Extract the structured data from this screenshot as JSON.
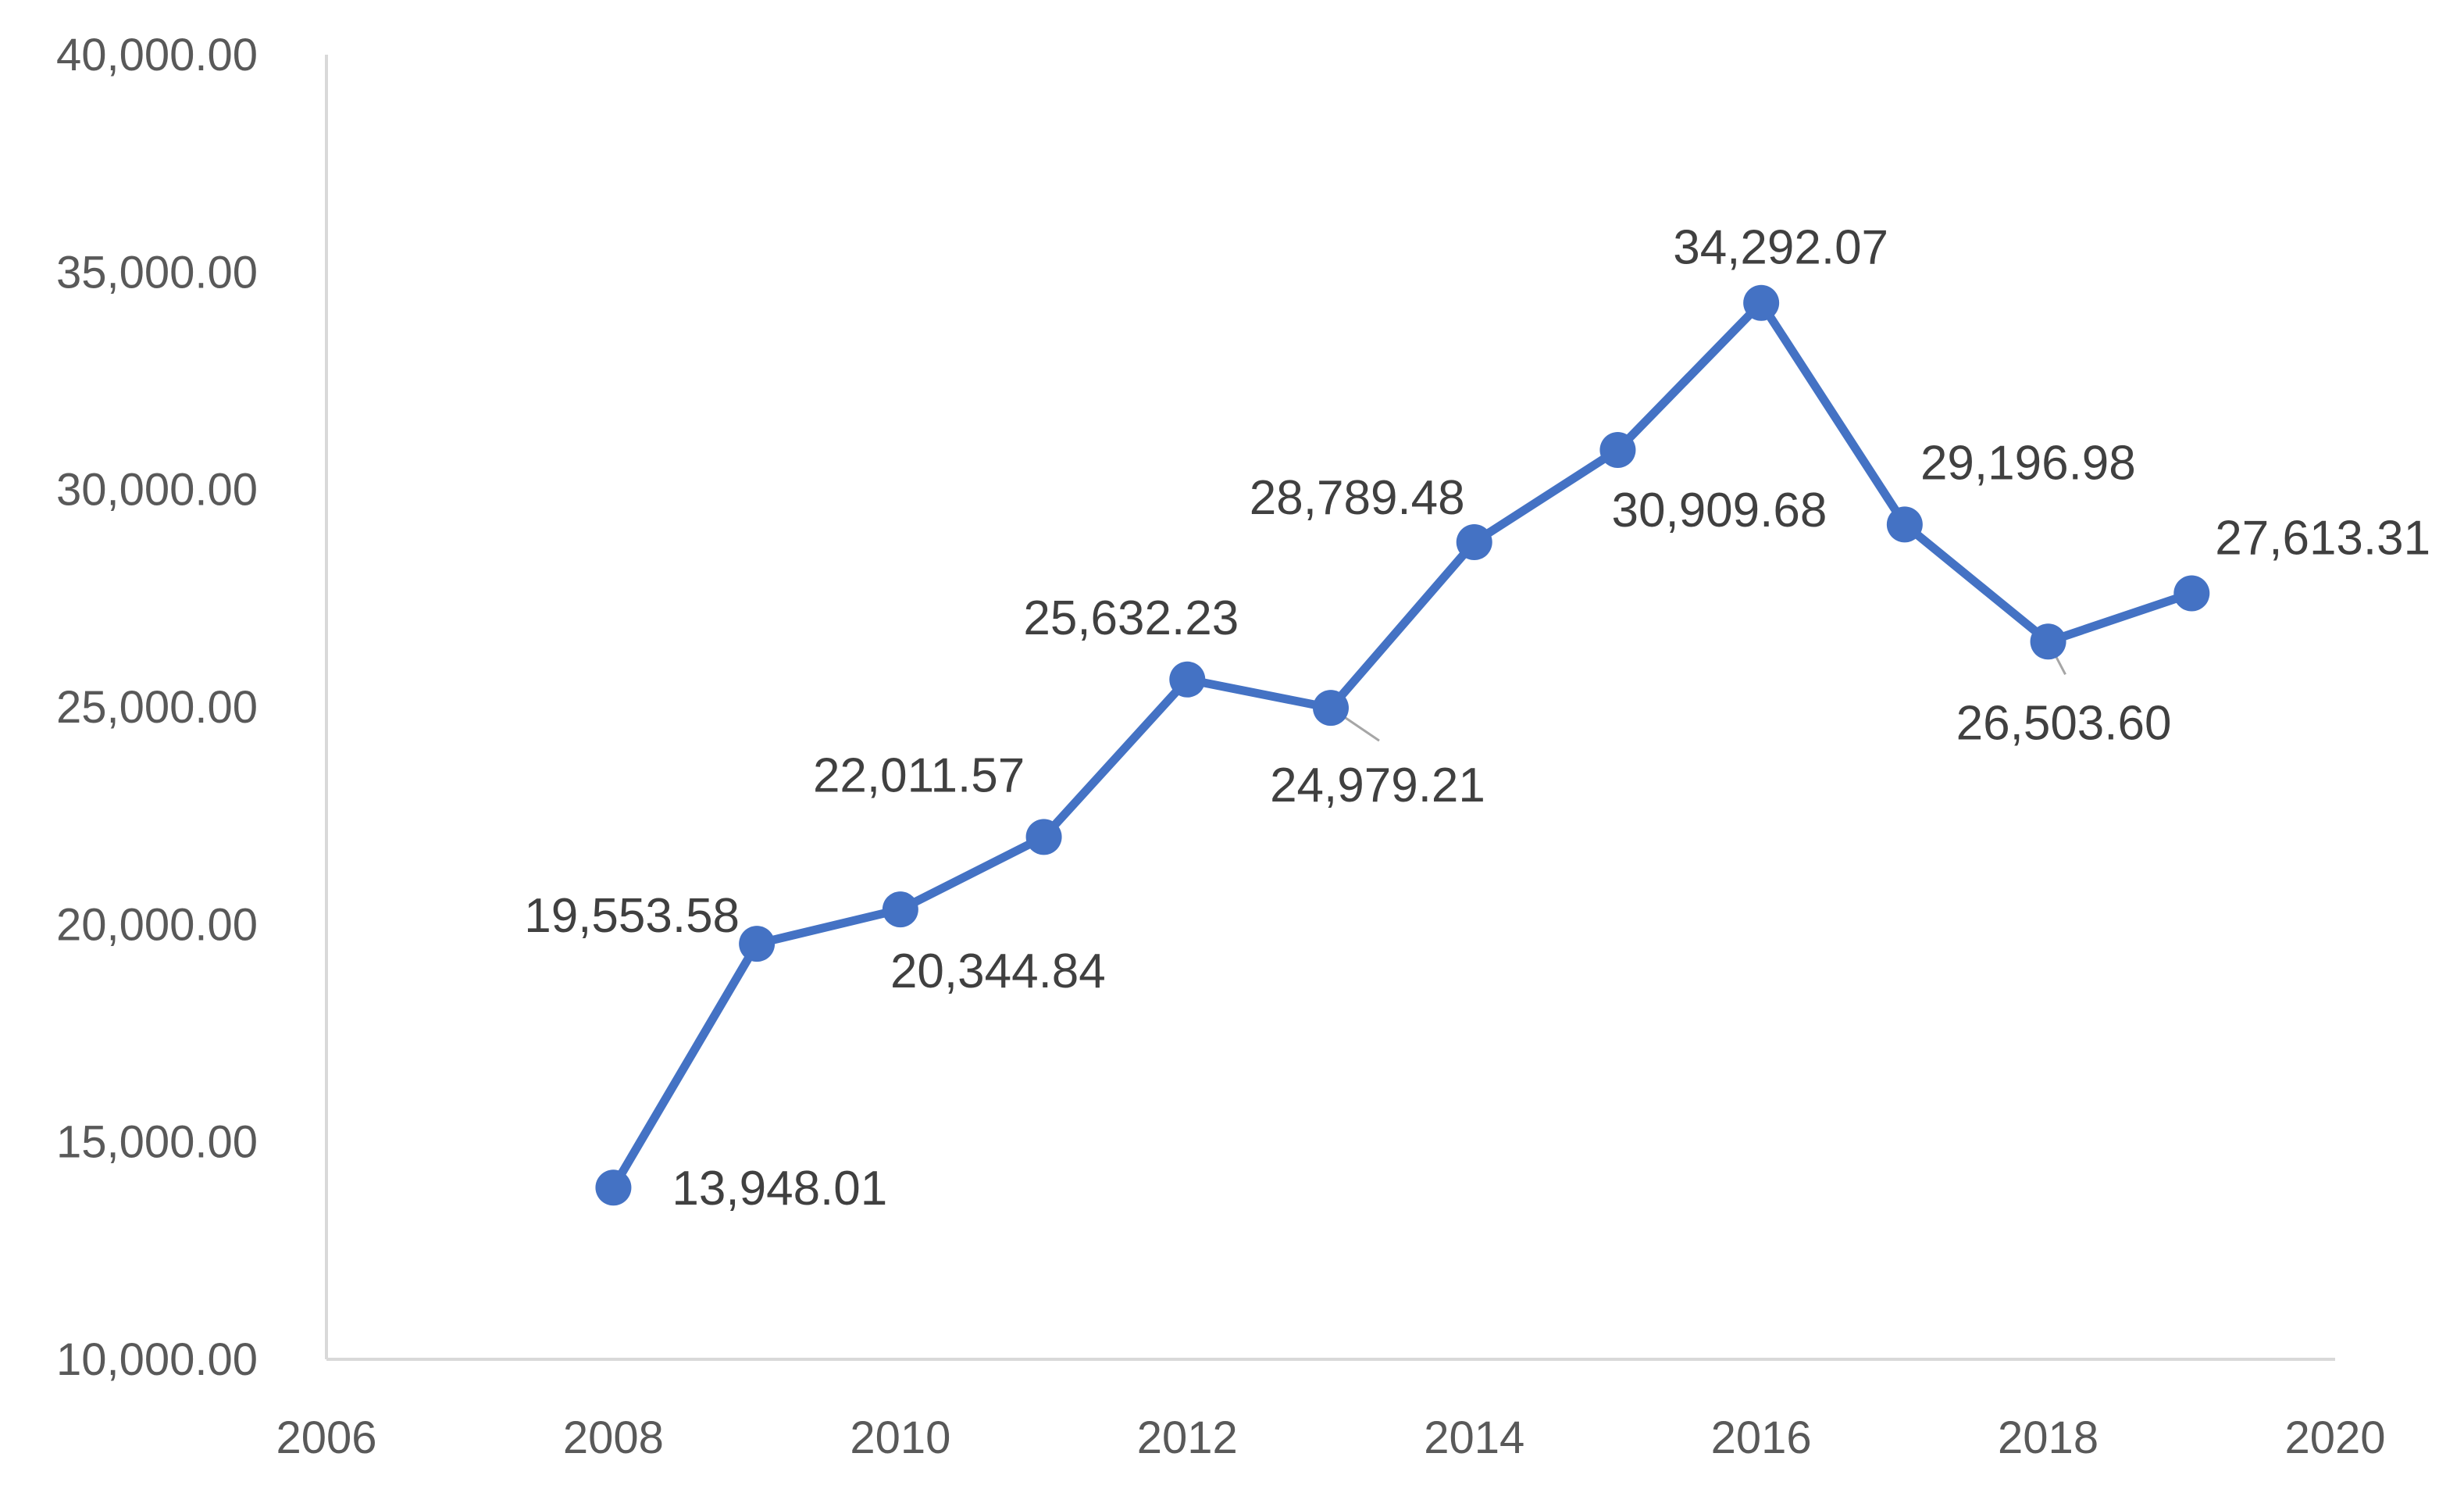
{
  "chart_data": {
    "type": "line",
    "title": "",
    "xlabel": "",
    "ylabel": "",
    "x": [
      2008,
      2009,
      2010,
      2011,
      2012,
      2013,
      2014,
      2015,
      2016,
      2017,
      2018,
      2019
    ],
    "series": [
      {
        "values": [
          13948.01,
          19553.58,
          20344.84,
          22011.57,
          25632.23,
          24979.21,
          28789.48,
          30909.68,
          34292.07,
          29196.98,
          26503.6,
          27613.31
        ],
        "labels": [
          "13,948.01",
          "19,553.58",
          "20,344.84",
          "22,011.57",
          "25,632.23",
          "24,979.21",
          "28,789.48",
          "30,909.68",
          "34,292.07",
          "29,196.98",
          "26,503.60",
          "27,613.31"
        ],
        "color": "#4472c4"
      }
    ],
    "xlim": [
      2006,
      2020
    ],
    "ylim": [
      10000,
      40000
    ],
    "x_ticks": [
      2006,
      2008,
      2010,
      2012,
      2014,
      2016,
      2018,
      2020
    ],
    "x_tick_labels": [
      "2006",
      "2008",
      "2010",
      "2012",
      "2014",
      "2016",
      "2018",
      "2020"
    ],
    "y_ticks": [
      10000,
      15000,
      20000,
      25000,
      30000,
      35000,
      40000
    ],
    "y_tick_labels": [
      "10,000.00",
      "15,000.00",
      "20,000.00",
      "25,000.00",
      "30,000.00",
      "35,000.00",
      "40,000.00"
    ],
    "grid": false,
    "legend": "none",
    "axis_color": "#d9d9d9",
    "text_color": "#595959"
  }
}
